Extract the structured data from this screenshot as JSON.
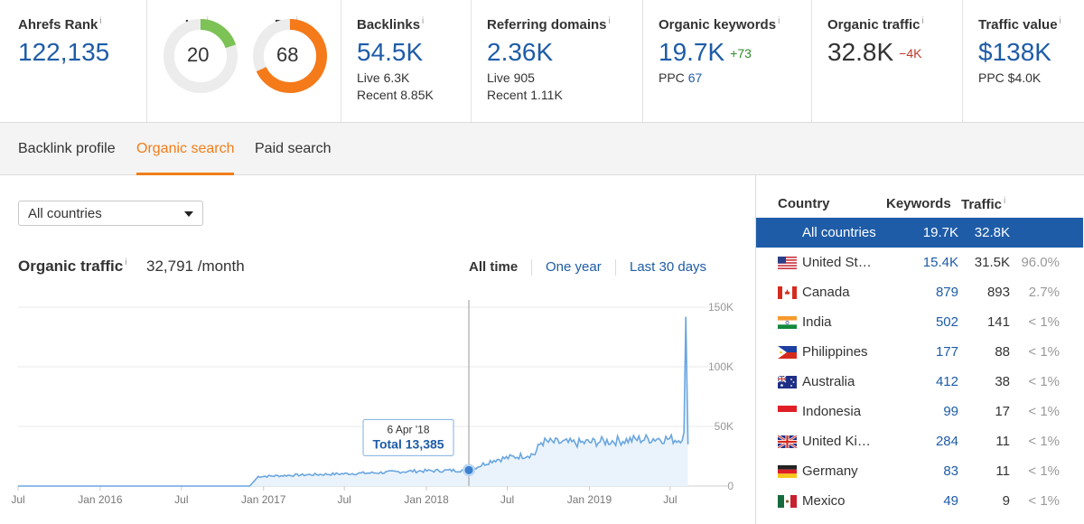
{
  "metrics": {
    "ahrefs_rank": {
      "label": "Ahrefs Rank",
      "info": "i",
      "value": "122,135"
    },
    "ur": {
      "label": "UR",
      "info": "i",
      "value": "20",
      "fraction": 0.2,
      "color": "#7cc255"
    },
    "dr": {
      "label": "DR",
      "info": "i",
      "value": "68",
      "fraction": 0.68,
      "color": "#f57a1a"
    },
    "backlinks": {
      "label": "Backlinks",
      "info": "i",
      "value": "54.5K",
      "live": "Live 6.3K",
      "recent": "Recent 8.85K"
    },
    "referring_domains": {
      "label": "Referring domains",
      "info": "i",
      "value": "2.36K",
      "live": "Live 905",
      "recent": "Recent 1.11K"
    },
    "organic_keywords": {
      "label": "Organic keywords",
      "info": "i",
      "value": "19.7K",
      "delta": "+73",
      "ppc_label": "PPC",
      "ppc_value": "67"
    },
    "organic_traffic": {
      "label": "Organic traffic",
      "info": "i",
      "value": "32.8K",
      "delta": "−4K"
    },
    "traffic_value": {
      "label": "Traffic value",
      "info": "i",
      "value": "$138K",
      "ppc": "PPC $4.0K"
    }
  },
  "tabs": [
    {
      "label": "Backlink profile",
      "active": false
    },
    {
      "label": "Organic search",
      "active": true
    },
    {
      "label": "Paid search",
      "active": false
    }
  ],
  "country_select": {
    "value": "All countries"
  },
  "organic_traffic_panel": {
    "title": "Organic traffic",
    "info": "i",
    "value": "32,791 /month",
    "ranges": [
      {
        "label": "All time",
        "active": true
      },
      {
        "label": "One year",
        "active": false
      },
      {
        "label": "Last 30 days",
        "active": false
      }
    ]
  },
  "chart_data": {
    "type": "area",
    "x_ticks": [
      "Jul",
      "Jan 2016",
      "Jul",
      "Jan 2017",
      "Jul",
      "Jan 2018",
      "Jul",
      "Jan 2019",
      "Jul"
    ],
    "y_ticks": [
      "150K",
      "100K",
      "50K",
      "0"
    ],
    "ylim": [
      0,
      150000
    ],
    "x_range": [
      "2015-07-01",
      "2019-08-31"
    ],
    "series": [
      {
        "values": [
          {
            "x": "2015-07-01",
            "y": 0
          },
          {
            "x": "2016-12-01",
            "y": 0
          },
          {
            "x": "2016-12-20",
            "y": 8000
          },
          {
            "x": "2017-03-01",
            "y": 9000
          },
          {
            "x": "2017-06-01",
            "y": 10000
          },
          {
            "x": "2017-09-01",
            "y": 11000
          },
          {
            "x": "2017-12-01",
            "y": 12500
          },
          {
            "x": "2018-02-15",
            "y": 13000
          },
          {
            "x": "2018-04-06",
            "y": 13385
          },
          {
            "x": "2018-06-01",
            "y": 22000
          },
          {
            "x": "2018-09-01",
            "y": 27000
          },
          {
            "x": "2018-09-15",
            "y": 37000
          },
          {
            "x": "2018-12-01",
            "y": 36000
          },
          {
            "x": "2019-03-01",
            "y": 38000
          },
          {
            "x": "2019-06-01",
            "y": 40000
          },
          {
            "x": "2019-07-20",
            "y": 39000
          },
          {
            "x": "2019-08-01",
            "y": 43000
          },
          {
            "x": "2019-08-05",
            "y": 142000
          },
          {
            "x": "2019-08-10",
            "y": 35000
          }
        ]
      }
    ],
    "tooltip": {
      "date": "6 Apr '18",
      "text": "Total 13,385",
      "x": "2018-04-06",
      "y": 13385
    },
    "color": "#6aa6e0"
  },
  "country_table": {
    "headers": {
      "country": "Country",
      "keywords": "Keywords",
      "traffic": "Traffic",
      "info": "i"
    },
    "rows": [
      {
        "flag": "none",
        "country": "All countries",
        "keywords": "19.7K",
        "traffic": "32.8K",
        "pct": "",
        "selected": true
      },
      {
        "flag": "us",
        "country": "United States",
        "keywords": "15.4K",
        "traffic": "31.5K",
        "pct": "96.0%",
        "selected": false
      },
      {
        "flag": "ca",
        "country": "Canada",
        "keywords": "879",
        "traffic": "893",
        "pct": "2.7%",
        "selected": false
      },
      {
        "flag": "in",
        "country": "India",
        "keywords": "502",
        "traffic": "141",
        "pct": "< 1%",
        "selected": false
      },
      {
        "flag": "ph",
        "country": "Philippines",
        "keywords": "177",
        "traffic": "88",
        "pct": "< 1%",
        "selected": false
      },
      {
        "flag": "au",
        "country": "Australia",
        "keywords": "412",
        "traffic": "38",
        "pct": "< 1%",
        "selected": false
      },
      {
        "flag": "id",
        "country": "Indonesia",
        "keywords": "99",
        "traffic": "17",
        "pct": "< 1%",
        "selected": false
      },
      {
        "flag": "gb",
        "country": "United Kingdom",
        "keywords": "284",
        "traffic": "11",
        "pct": "< 1%",
        "selected": false
      },
      {
        "flag": "de",
        "country": "Germany",
        "keywords": "83",
        "traffic": "11",
        "pct": "< 1%",
        "selected": false
      },
      {
        "flag": "mx",
        "country": "Mexico",
        "keywords": "49",
        "traffic": "9",
        "pct": "< 1%",
        "selected": false
      }
    ]
  },
  "colors": {
    "accent": "#f07e1a",
    "link": "#1e5ca8",
    "up": "#2e8b2e",
    "down": "#c0392b",
    "selected_row": "#1e5ca8"
  }
}
